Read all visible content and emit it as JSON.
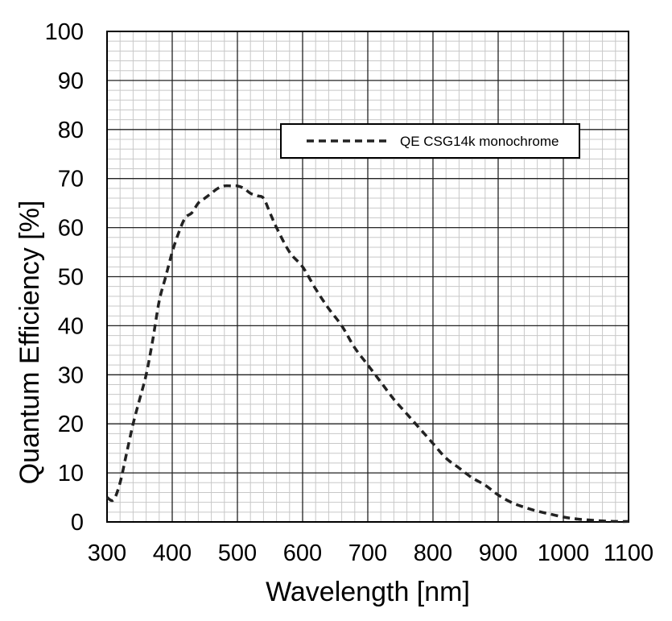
{
  "chart_data": {
    "type": "line",
    "xlabel": "Wavelength [nm]",
    "ylabel": "Quantum Efficiency [%]",
    "xlim": [
      300,
      1100
    ],
    "ylim": [
      0,
      100
    ],
    "x_ticks": [
      "300",
      "400",
      "500",
      "600",
      "700",
      "800",
      "900",
      "1000",
      "1100"
    ],
    "y_ticks": [
      "0",
      "10",
      "20",
      "30",
      "40",
      "50",
      "60",
      "70",
      "80",
      "90",
      "100"
    ],
    "grid": true,
    "minor_grid": true,
    "legend_position": "top-right",
    "series": [
      {
        "name": "QE CSG14k monochrome",
        "line_style": "dashed",
        "color": "#222222",
        "x": [
          300,
          310,
          320,
          330,
          340,
          350,
          360,
          370,
          380,
          390,
          400,
          410,
          420,
          430,
          440,
          450,
          460,
          470,
          480,
          490,
          500,
          510,
          520,
          530,
          540,
          550,
          560,
          580,
          600,
          620,
          640,
          660,
          680,
          700,
          720,
          740,
          760,
          780,
          800,
          820,
          840,
          860,
          880,
          900,
          920,
          940,
          960,
          980,
          1000,
          1020,
          1040,
          1060,
          1080,
          1100
        ],
        "y": [
          5,
          4.5,
          8,
          14,
          20,
          25,
          30,
          37,
          45,
          50,
          55,
          59,
          62,
          63,
          65,
          66,
          67,
          68,
          68.5,
          68.5,
          68.5,
          68,
          67,
          66.5,
          66,
          63,
          60,
          55,
          52,
          47.5,
          43.5,
          40,
          35.5,
          32,
          28.5,
          25,
          22,
          19,
          16,
          13,
          11,
          9,
          7.5,
          5.5,
          4,
          3,
          2.2,
          1.6,
          1,
          0.6,
          0.4,
          0.2,
          0.1,
          0.1
        ]
      }
    ]
  }
}
